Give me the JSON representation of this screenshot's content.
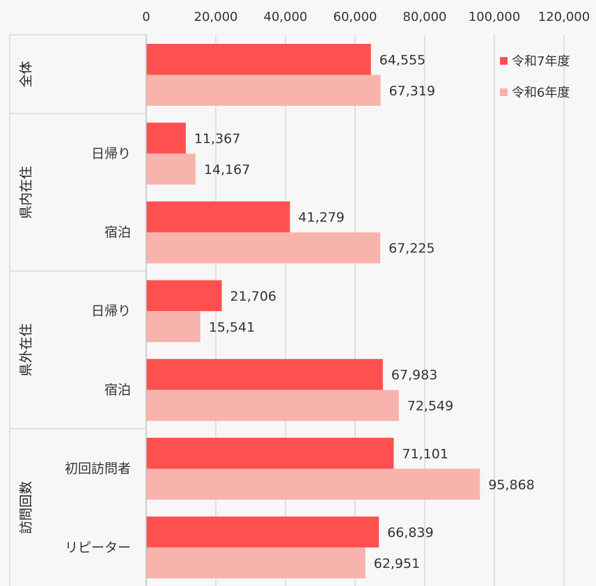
{
  "chart_data": {
    "type": "bar",
    "orientation": "horizontal",
    "xlim": [
      0,
      120000
    ],
    "xticks": [
      "0",
      "20,000",
      "40,000",
      "60,000",
      "80,000",
      "100,000",
      "120,000"
    ],
    "grid": true,
    "legend_position": "top-right",
    "series": [
      {
        "name": "令和7年度",
        "color": "#ff5050",
        "values": [
          64555,
          11367,
          41279,
          21706,
          67983,
          71101,
          66839
        ],
        "labels": [
          "64,555",
          "11,367",
          "41,279",
          "21,706",
          "67,983",
          "71,101",
          "66,839"
        ]
      },
      {
        "name": "令和6年度",
        "color": "#f8b3ad",
        "values": [
          67319,
          14167,
          67225,
          15541,
          72549,
          95868,
          62951
        ],
        "labels": [
          "67,319",
          "14,167",
          "67,225",
          "15,541",
          "72,549",
          "95,868",
          "62,951"
        ]
      }
    ],
    "categories": [
      "",
      "日帰り",
      "宿泊",
      "日帰り",
      "宿泊",
      "初回訪問者",
      "リピーター"
    ],
    "groups": [
      {
        "label": "全体",
        "categories": [
          0
        ]
      },
      {
        "label": "県内在住",
        "categories": [
          1,
          2
        ]
      },
      {
        "label": "県外在住",
        "categories": [
          3,
          4
        ]
      },
      {
        "label": "訪問回数",
        "categories": [
          5,
          6
        ]
      }
    ]
  }
}
